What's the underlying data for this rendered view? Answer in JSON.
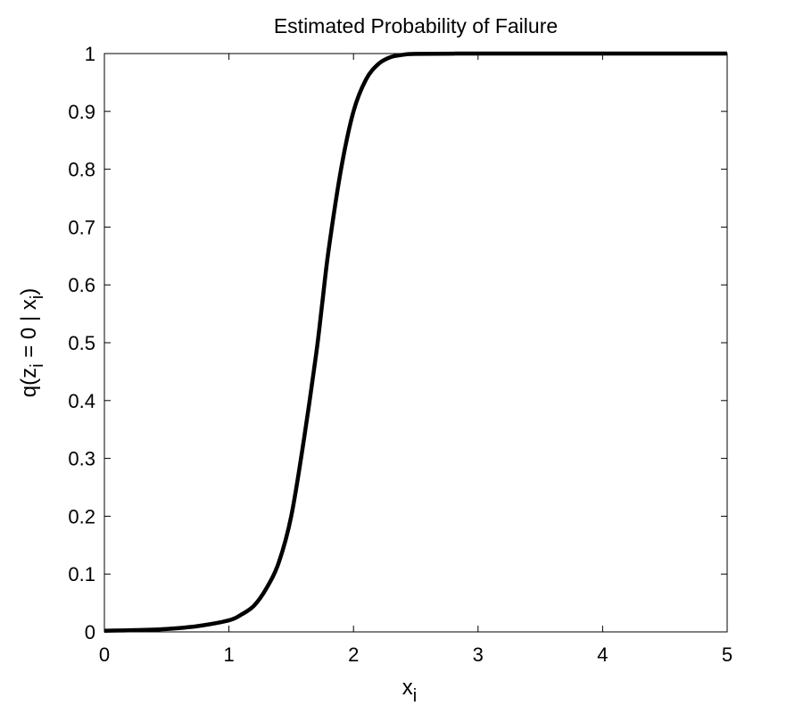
{
  "chart_data": {
    "type": "line",
    "title": "Estimated Probability of Failure",
    "xlabel": {
      "base": "x",
      "subscript": "i"
    },
    "ylabel": {
      "prefix": "q(z",
      "sub1": "i",
      "middle": " = 0 | x",
      "sub2": "i",
      "suffix": ")"
    },
    "xlim": [
      0,
      5
    ],
    "ylim": [
      0,
      1
    ],
    "x_ticks": [
      "0",
      "1",
      "2",
      "3",
      "4",
      "5"
    ],
    "y_ticks": [
      "0",
      "0.1",
      "0.2",
      "0.3",
      "0.4",
      "0.5",
      "0.6",
      "0.7",
      "0.8",
      "0.9",
      "1"
    ],
    "grid": false,
    "legend": "none",
    "series": [
      {
        "color": "#000000",
        "x": [
          0,
          0.25,
          0.5,
          0.75,
          1.0,
          1.1,
          1.2,
          1.3,
          1.4,
          1.5,
          1.6,
          1.7,
          1.75,
          1.8,
          1.9,
          2.0,
          2.1,
          2.2,
          2.3,
          2.4,
          2.5,
          3.0,
          3.5,
          4.0,
          4.5,
          5.0
        ],
        "y": [
          0.002,
          0.003,
          0.005,
          0.01,
          0.02,
          0.03,
          0.045,
          0.075,
          0.12,
          0.2,
          0.33,
          0.48,
          0.57,
          0.66,
          0.8,
          0.9,
          0.955,
          0.982,
          0.994,
          0.998,
          0.9995,
          1.0,
          1.0,
          1.0,
          1.0,
          1.0
        ]
      }
    ]
  }
}
